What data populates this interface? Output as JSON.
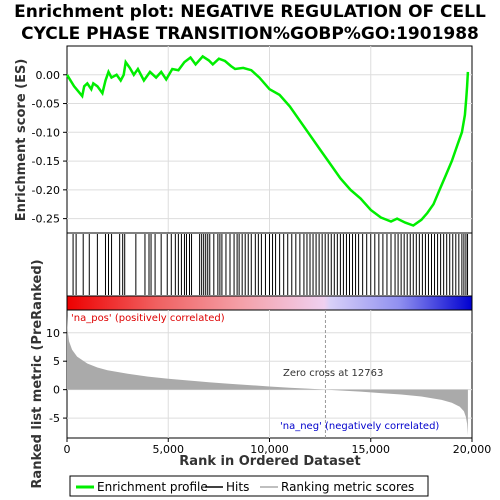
{
  "title_line1": "Enrichment plot: NEGATIVE REGULATION OF CELL",
  "title_line2": "CYCLE PHASE TRANSITION%GOBP%GO:1901988",
  "colors": {
    "es_line": "#00ee00",
    "hits": "#000000",
    "metric_fill": "#aaaaaa",
    "pos_label": "#dd0000",
    "neg_label": "#0000cc",
    "zero_cross": "#999999",
    "grid": "#dddddd"
  },
  "chart_data": [
    {
      "name": "enrichment_profile",
      "type": "line",
      "ylabel": "Enrichment score (ES)",
      "ylim": [
        -0.275,
        0.05
      ],
      "yticks": [
        0.0,
        -0.05,
        -0.1,
        -0.15,
        -0.2,
        -0.25
      ],
      "ytick_labels": [
        "0.00",
        "-0.05",
        "-0.10",
        "-0.15",
        "-0.20",
        "-0.25"
      ],
      "xlim": [
        0,
        20000
      ],
      "grid": true,
      "series": [
        {
          "points": [
            [
              0,
              0.0
            ],
            [
              350,
              -0.02
            ],
            [
              750,
              -0.037
            ],
            [
              850,
              -0.02
            ],
            [
              1000,
              -0.015
            ],
            [
              1200,
              -0.025
            ],
            [
              1300,
              -0.015
            ],
            [
              1500,
              -0.02
            ],
            [
              1750,
              -0.032
            ],
            [
              1900,
              -0.01
            ],
            [
              2050,
              0.005
            ],
            [
              2200,
              -0.005
            ],
            [
              2450,
              0.0
            ],
            [
              2650,
              -0.01
            ],
            [
              2800,
              0.0
            ],
            [
              2900,
              0.022
            ],
            [
              3100,
              0.012
            ],
            [
              3300,
              0.0
            ],
            [
              3500,
              0.01
            ],
            [
              3800,
              -0.01
            ],
            [
              4100,
              0.005
            ],
            [
              4400,
              -0.005
            ],
            [
              4650,
              0.005
            ],
            [
              4900,
              -0.008
            ],
            [
              5200,
              0.01
            ],
            [
              5500,
              0.008
            ],
            [
              5800,
              0.022
            ],
            [
              6100,
              0.03
            ],
            [
              6350,
              0.018
            ],
            [
              6700,
              0.032
            ],
            [
              7000,
              0.025
            ],
            [
              7200,
              0.018
            ],
            [
              7500,
              0.028
            ],
            [
              7800,
              0.024
            ],
            [
              8100,
              0.015
            ],
            [
              8300,
              0.01
            ],
            [
              8700,
              0.012
            ],
            [
              9100,
              0.008
            ],
            [
              9500,
              -0.005
            ],
            [
              10000,
              -0.025
            ],
            [
              10500,
              -0.035
            ],
            [
              11000,
              -0.055
            ],
            [
              11500,
              -0.08
            ],
            [
              12000,
              -0.105
            ],
            [
              12500,
              -0.13
            ],
            [
              13000,
              -0.155
            ],
            [
              13500,
              -0.18
            ],
            [
              14000,
              -0.2
            ],
            [
              14500,
              -0.215
            ],
            [
              15000,
              -0.235
            ],
            [
              15500,
              -0.248
            ],
            [
              16000,
              -0.255
            ],
            [
              16300,
              -0.25
            ],
            [
              16700,
              -0.257
            ],
            [
              17100,
              -0.262
            ],
            [
              17500,
              -0.252
            ],
            [
              17800,
              -0.24
            ],
            [
              18100,
              -0.225
            ],
            [
              18400,
              -0.2
            ],
            [
              18700,
              -0.175
            ],
            [
              19000,
              -0.15
            ],
            [
              19300,
              -0.12
            ],
            [
              19500,
              -0.1
            ],
            [
              19650,
              -0.07
            ],
            [
              19720,
              -0.04
            ],
            [
              19760,
              -0.02
            ],
            [
              19800,
              0.005
            ]
          ]
        }
      ]
    },
    {
      "name": "hits",
      "type": "scatter",
      "xlim": [
        0,
        20000
      ],
      "hit_positions": [
        300,
        450,
        800,
        1100,
        1500,
        1900,
        2050,
        2200,
        2600,
        2750,
        2850,
        3400,
        3850,
        4050,
        4150,
        4350,
        4650,
        4950,
        5150,
        5350,
        5500,
        5650,
        5800,
        5900,
        6050,
        6150,
        6550,
        6650,
        6750,
        6850,
        6950,
        7050,
        7250,
        7450,
        7550,
        7650,
        7850,
        8050,
        8250,
        8400,
        8500,
        8650,
        8800,
        8950,
        9100,
        9300,
        9450,
        9600,
        9800,
        10000,
        10150,
        10300,
        10500,
        10700,
        10900,
        11100,
        11300,
        11500,
        11700,
        11850,
        12000,
        12150,
        12300,
        12450,
        12600,
        12750,
        12900,
        13050,
        13200,
        13350,
        13500,
        13650,
        13800,
        13950,
        14100,
        14250,
        14400,
        14600,
        14800,
        15000,
        15200,
        15400,
        15600,
        15800,
        16000,
        16200,
        16350,
        16500,
        16650,
        16800,
        16950,
        17100,
        17250,
        17400,
        17550,
        17700,
        17850,
        18000,
        18150,
        18300,
        18450,
        18600,
        18750,
        18900,
        19050,
        19200,
        19350,
        19500,
        19600,
        19700,
        19780
      ]
    },
    {
      "name": "ranked_list_metric",
      "type": "area",
      "ylabel": "Ranked list metric (PreRanked)",
      "xlabel": "Rank in Ordered Dataset",
      "ylim": [
        -8.5,
        14
      ],
      "yticks": [
        10,
        5,
        0,
        -5
      ],
      "ytick_labels": [
        "10",
        "5",
        "0",
        "-5"
      ],
      "xlim": [
        0,
        20000
      ],
      "xticks": [
        0,
        5000,
        10000,
        15000,
        20000
      ],
      "xtick_labels": [
        "0",
        "5,000",
        "10,000",
        "15,000",
        "20,000"
      ],
      "grid": true,
      "x": [
        0,
        30,
        100,
        250,
        500,
        1000,
        1500,
        2000,
        3000,
        4000,
        5000,
        6000,
        7000,
        8000,
        9000,
        10000,
        11000,
        12000,
        12763,
        13500,
        14500,
        15500,
        16500,
        17500,
        18500,
        19000,
        19400,
        19600,
        19700,
        19760,
        19800
      ],
      "values": [
        13.0,
        10.5,
        8.5,
        7.0,
        5.8,
        4.6,
        3.9,
        3.4,
        2.8,
        2.3,
        1.9,
        1.6,
        1.3,
        1.05,
        0.8,
        0.55,
        0.35,
        0.15,
        0.0,
        -0.15,
        -0.35,
        -0.6,
        -0.85,
        -1.2,
        -1.8,
        -2.3,
        -3.0,
        -3.8,
        -4.8,
        -6.0,
        -8.0
      ]
    }
  ],
  "heatmap_bar": {
    "zero_cross_rank": 12763,
    "label_pos": "'na_pos' (positively correlated)",
    "label_neg": "'na_neg' (negatively correlated)",
    "zero_cross_label": "Zero cross at 12763"
  },
  "legend": [
    {
      "label": "Enrichment profile",
      "color": "#00ee00"
    },
    {
      "label": "Hits",
      "color": "#000000"
    },
    {
      "label": "Ranking metric scores",
      "color": "#aaaaaa"
    }
  ]
}
